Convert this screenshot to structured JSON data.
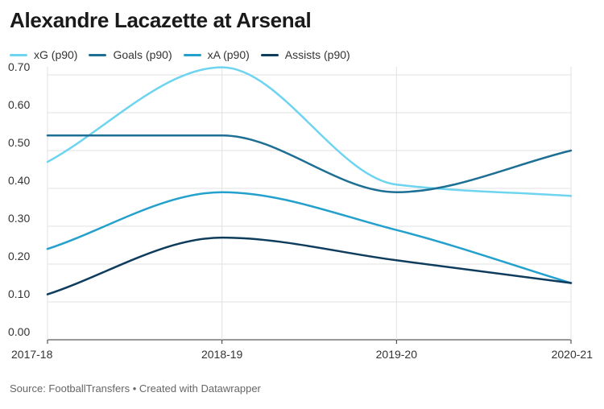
{
  "chart_data": {
    "type": "line",
    "title": "Alexandre Lacazette at Arsenal",
    "x": [
      "2017-18",
      "2018-19",
      "2019-20",
      "2020-21"
    ],
    "series": [
      {
        "name": "xG (p90)",
        "color": "#6fd4ef",
        "values": [
          0.47,
          0.72,
          0.41,
          0.38
        ]
      },
      {
        "name": "Goals (p90)",
        "color": "#1e6f94",
        "values": [
          0.54,
          0.54,
          0.39,
          0.5
        ]
      },
      {
        "name": "xA (p90)",
        "color": "#23a0cc",
        "values": [
          0.24,
          0.39,
          0.29,
          0.15
        ]
      },
      {
        "name": "Assists (p90)",
        "color": "#0e3c5c",
        "values": [
          0.12,
          0.27,
          0.21,
          0.15
        ]
      }
    ],
    "ylim": [
      0,
      0.7
    ],
    "yticks": [
      "0.00",
      "0.10",
      "0.20",
      "0.30",
      "0.40",
      "0.50",
      "0.60",
      "0.70"
    ],
    "grid": true,
    "legend_position": "top-left"
  },
  "source": "Source: FootballTransfers • Created with Datawrapper"
}
